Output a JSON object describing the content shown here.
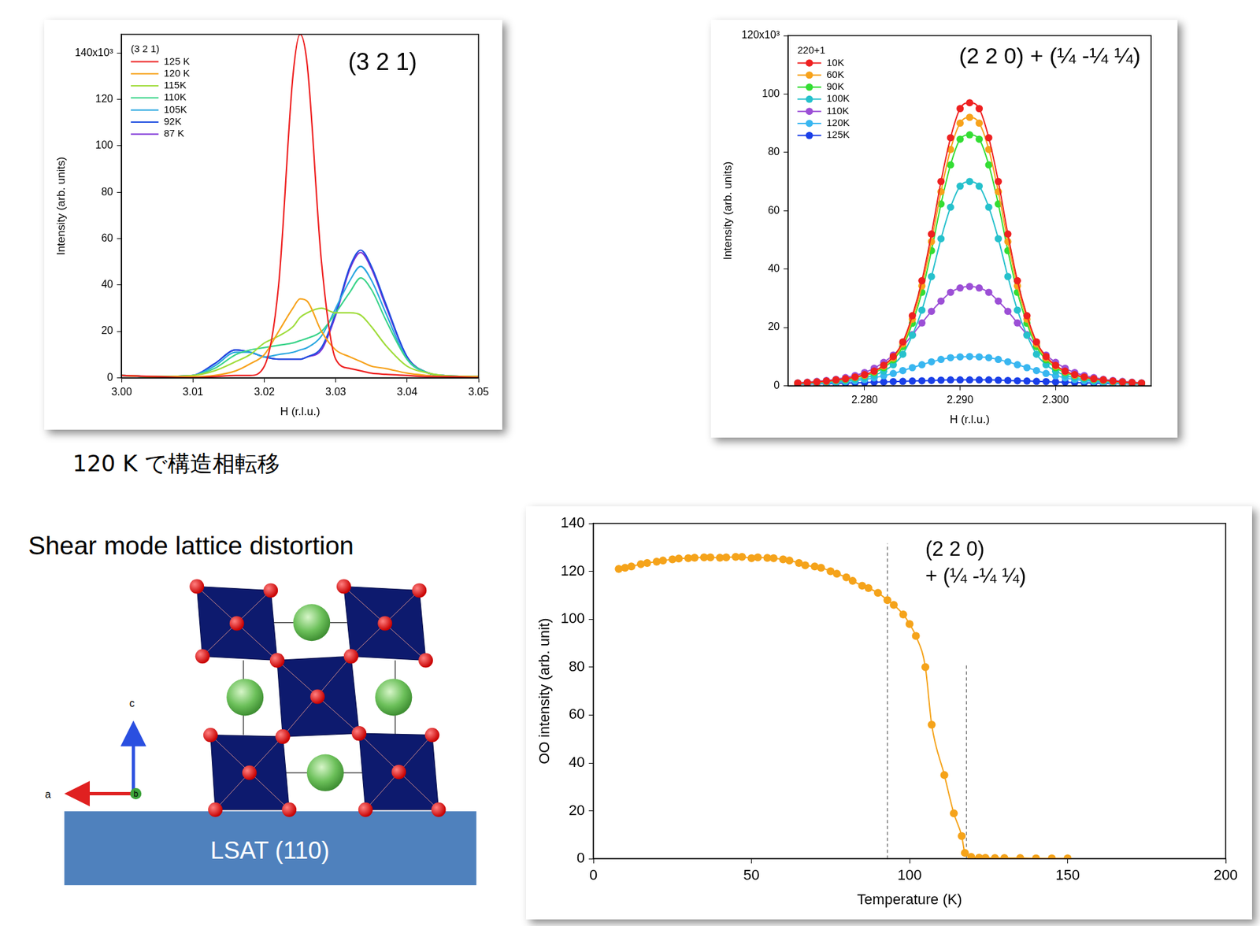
{
  "chart_data": [
    {
      "type": "line",
      "annotations": [
        "(3 2 1)"
      ],
      "legend_title": "(3 2 1)",
      "legend": "upper left",
      "caption": "120 K で構造相転移",
      "x_label": "H (r.l.u.)",
      "y_label": "Intensity (arb. units)",
      "xlim": [
        3.0,
        3.05
      ],
      "xticks": [
        {
          "value": 3.0,
          "label": "3.00"
        },
        3.01,
        3.02,
        3.03,
        3.04,
        3.05
      ],
      "ylim": [
        0,
        148
      ],
      "yticks": [
        0,
        20,
        40,
        60,
        80,
        100,
        120,
        {
          "value": 140,
          "label": "140x10³"
        }
      ],
      "grid": false,
      "marker": "none",
      "x": [
        3.0,
        3.005,
        3.01,
        3.013,
        3.016,
        3.018,
        3.02,
        3.022,
        3.024,
        3.025,
        3.026,
        3.028,
        3.03,
        3.032,
        3.0335,
        3.035,
        3.037,
        3.04,
        3.043,
        3.045,
        3.05
      ],
      "series": [
        {
          "name": "125 K",
          "color": "#ee2020",
          "values": [
            1,
            0.5,
            0,
            0.5,
            1,
            1,
            5,
            40,
            130,
            148,
            135,
            50,
            8,
            4,
            3,
            2,
            1.5,
            1,
            0.5,
            0.5,
            0
          ]
        },
        {
          "name": "120 K",
          "color": "#f7a21b",
          "values": [
            1,
            0.5,
            0.5,
            1,
            3,
            6,
            10,
            20,
            30,
            34,
            33,
            20,
            12,
            9,
            7,
            5,
            4,
            2,
            1,
            0.5,
            0.5
          ]
        },
        {
          "name": "115K",
          "color": "#9fdc3a",
          "values": [
            1,
            0.5,
            1,
            3,
            7,
            10,
            15,
            18,
            22,
            26,
            28,
            30,
            28,
            28,
            27,
            22,
            14,
            5,
            2,
            1,
            0.5
          ]
        },
        {
          "name": "110K",
          "color": "#3ad48a",
          "values": [
            1,
            0.5,
            1,
            4,
            10,
            12,
            13,
            14,
            15,
            16,
            17,
            20,
            28,
            37,
            43,
            38,
            25,
            8,
            2,
            1,
            0.5
          ]
        },
        {
          "name": "105K",
          "color": "#2aa7e0",
          "values": [
            1,
            0.5,
            1,
            5,
            11,
            11,
            9,
            10,
            11,
            12,
            13,
            18,
            30,
            42,
            48,
            42,
            28,
            8,
            2,
            1,
            0.5
          ]
        },
        {
          "name": "92K",
          "color": "#1f4fe0",
          "values": [
            1,
            0.5,
            1,
            6,
            12,
            11,
            9,
            8,
            8,
            8,
            9,
            13,
            28,
            48,
            55,
            48,
            32,
            9,
            2,
            1,
            0.5
          ]
        },
        {
          "name": "87 K",
          "color": "#7b2fd6",
          "values": [
            1,
            0.5,
            1,
            6,
            12,
            11,
            9,
            8,
            8,
            8,
            9,
            12,
            27,
            47,
            54,
            47,
            31,
            9,
            2,
            1,
            0.5
          ]
        }
      ]
    },
    {
      "type": "line",
      "annotations": [
        "(2 2 0) + (¼ -¼ ¼)"
      ],
      "legend_title": "220+1",
      "legend": "upper left",
      "x_label": "H (r.l.u.)",
      "y_label": "Intensity (arb. units)",
      "xlim": [
        2.272,
        2.31
      ],
      "xticks": [
        {
          "value": 2.28,
          "label": "2.280"
        },
        {
          "value": 2.29,
          "label": "2.290"
        },
        {
          "value": 2.3,
          "label": "2.300"
        }
      ],
      "ylim": [
        0,
        120
      ],
      "yticks": [
        0,
        20,
        40,
        60,
        80,
        100,
        {
          "value": 120,
          "label": "120x10³"
        }
      ],
      "grid": false,
      "marker": "circle",
      "x": [
        2.273,
        2.274,
        2.275,
        2.276,
        2.277,
        2.278,
        2.279,
        2.28,
        2.281,
        2.282,
        2.283,
        2.284,
        2.285,
        2.286,
        2.287,
        2.288,
        2.289,
        2.29,
        2.291,
        2.292,
        2.293,
        2.294,
        2.295,
        2.296,
        2.297,
        2.298,
        2.299,
        2.3,
        2.301,
        2.302,
        2.303,
        2.304,
        2.305,
        2.306,
        2.307,
        2.308,
        2.309
      ],
      "series": [
        {
          "name": "10K",
          "color": "#ee2020",
          "values": [
            0.9,
            1.1,
            1.3,
            1.6,
            2,
            2.4,
            3,
            3.8,
            5,
            7,
            10,
            15,
            24,
            36,
            52,
            70,
            85,
            95,
            97,
            95,
            85,
            70,
            52,
            36,
            24,
            15,
            10,
            7,
            5,
            3.8,
            3,
            2.4,
            2,
            1.6,
            1.3,
            1.1,
            0.9
          ]
        },
        {
          "name": "60K",
          "color": "#f7a21b",
          "values": [
            0.9,
            1,
            1.2,
            1.5,
            1.9,
            2.3,
            2.9,
            3.6,
            4.8,
            6.7,
            9.5,
            14.3,
            22.8,
            34.2,
            49.4,
            66.5,
            81,
            90,
            92,
            90,
            81,
            66.5,
            49.4,
            34.2,
            22.8,
            14.3,
            9.5,
            6.7,
            4.8,
            3.6,
            2.9,
            2.3,
            1.9,
            1.5,
            1.2,
            1,
            0.9
          ]
        },
        {
          "name": "90K",
          "color": "#33dd33",
          "values": [
            0.8,
            1,
            1.2,
            1.4,
            1.8,
            2.1,
            2.7,
            3.4,
            4.5,
            6.2,
            8.9,
            13.4,
            21.4,
            32,
            46.3,
            62.3,
            75.7,
            84.5,
            86,
            84.5,
            75.7,
            62.3,
            46.3,
            32,
            21.4,
            13.4,
            8.9,
            6.2,
            4.5,
            3.4,
            2.7,
            2.1,
            1.8,
            1.4,
            1.2,
            1,
            0.8
          ]
        },
        {
          "name": "100K",
          "color": "#26c1cc",
          "values": [
            0.6,
            0.8,
            0.9,
            1.2,
            1.4,
            1.7,
            2.2,
            2.7,
            3.6,
            5,
            7.2,
            10.8,
            17.3,
            25.9,
            37.4,
            50.4,
            61.2,
            68.4,
            70,
            68.4,
            61.2,
            50.4,
            37.4,
            25.9,
            17.3,
            10.8,
            7.2,
            5,
            3.6,
            2.7,
            2.2,
            1.7,
            1.4,
            1.2,
            0.9,
            0.8,
            0.6
          ]
        },
        {
          "name": "110K",
          "color": "#9c4fd6",
          "values": [
            1,
            1.2,
            1.5,
            1.8,
            2.2,
            2.8,
            3.5,
            4.5,
            6,
            8,
            10.5,
            13.5,
            17.5,
            21.5,
            25.5,
            29,
            32,
            33.5,
            34,
            33.5,
            32,
            29,
            25.5,
            21.5,
            17.5,
            13.5,
            10.5,
            8,
            6,
            4.5,
            3.5,
            2.8,
            2.2,
            1.8,
            1.5,
            1.2,
            1
          ]
        },
        {
          "name": "120K",
          "color": "#38b6f0",
          "values": [
            0.6,
            0.7,
            0.8,
            0.9,
            1.1,
            1.4,
            1.7,
            2.1,
            2.7,
            3.4,
            4.2,
            5.2,
            6.2,
            7.2,
            8.2,
            9,
            9.6,
            9.9,
            10,
            9.9,
            9.6,
            9,
            8.2,
            7.2,
            6.2,
            5.2,
            4.2,
            3.4,
            2.7,
            2.1,
            1.7,
            1.4,
            1.1,
            0.9,
            0.8,
            0.7,
            0.6
          ]
        },
        {
          "name": "125K",
          "color": "#1a3fe8",
          "values": [
            0.6,
            0.6,
            0.7,
            0.7,
            0.8,
            0.9,
            1,
            1.1,
            1.2,
            1.3,
            1.4,
            1.5,
            1.6,
            1.7,
            1.8,
            1.9,
            2,
            2,
            2,
            2,
            2,
            1.9,
            1.8,
            1.7,
            1.6,
            1.5,
            1.4,
            1.3,
            1.2,
            1.1,
            1,
            0.9,
            0.8,
            0.7,
            0.7,
            0.6,
            0.6
          ]
        }
      ]
    },
    {
      "type": "line",
      "annotations": [
        "(2 2 0)",
        "+ (¼ -¼ ¼)"
      ],
      "x_label": "Temperature (K)",
      "y_label": "OO intensity (arb. unit)",
      "xlim": [
        0,
        200
      ],
      "xticks": [
        0,
        50,
        100,
        150,
        200
      ],
      "ylim": [
        0,
        140
      ],
      "yticks": [
        0,
        20,
        40,
        60,
        80,
        100,
        120,
        140
      ],
      "grid": false,
      "marker": "circle",
      "color": "#f5a31a",
      "vlines": [
        93,
        118
      ],
      "x": [
        8,
        10,
        12,
        15,
        17,
        20,
        22,
        25,
        27,
        30,
        32,
        35,
        37,
        40,
        42,
        45,
        47,
        50,
        52,
        55,
        57,
        60,
        62,
        65,
        67,
        70,
        72,
        75,
        77,
        80,
        82,
        85,
        87,
        90,
        93,
        95,
        98,
        100,
        102,
        105,
        107,
        111,
        114,
        116.5,
        117.5,
        119.5,
        122,
        124,
        127,
        130,
        135,
        140,
        145,
        150
      ],
      "values": [
        121,
        121.5,
        122,
        123,
        123.5,
        124,
        124.5,
        125,
        125.3,
        125.5,
        125.7,
        125.8,
        125.8,
        125.7,
        125.8,
        126,
        126,
        125.5,
        125.8,
        125.6,
        125.5,
        125,
        124.5,
        123.5,
        122.5,
        122,
        121.5,
        120,
        119,
        117.5,
        116,
        114,
        113,
        111,
        108,
        106,
        102,
        98,
        93,
        80,
        56,
        35,
        19,
        9.5,
        2.5,
        0.8,
        0.5,
        0.4,
        0.3,
        0.3,
        0.3,
        0.2,
        0.2,
        0.2
      ]
    }
  ],
  "diagram": {
    "title": "Shear mode lattice distortion",
    "substrate": "LSAT (110)",
    "axes": [
      "a",
      "b",
      "c"
    ]
  }
}
